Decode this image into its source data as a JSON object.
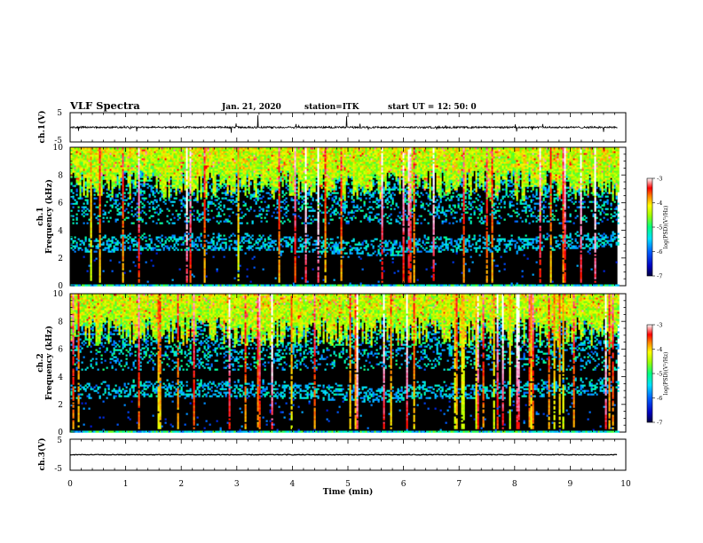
{
  "header": {
    "title": "VLF Spectra",
    "date": "Jan. 21, 2020",
    "station": "station=ITK",
    "start": "start UT =  12: 50: 0"
  },
  "colors": {
    "background": "#000000",
    "waveform": "#000000",
    "colormap": [
      "#00004a",
      "#0000c8",
      "#0060ff",
      "#00d8ff",
      "#00ff90",
      "#7cff00",
      "#f0ff00",
      "#ff9000",
      "#ff0000",
      "#ff7fbf",
      "#ffffff"
    ]
  },
  "chart_data": [
    {
      "type": "line",
      "name": "ch1-waveform",
      "ylabel": "ch.1(V)",
      "yticks": [
        "5",
        "-5"
      ],
      "ylim": [
        -5,
        5
      ],
      "xlim": [
        0,
        10
      ],
      "baseline": 0,
      "noise_amplitude": "small",
      "grid": false
    },
    {
      "type": "heatmap",
      "name": "ch1-spectrogram",
      "ylabel": "ch.1 Frequency (kHz)",
      "ylabel_line1": "ch.1",
      "ylabel_line2": "Frequency (kHz)",
      "yticks": [
        "0",
        "2",
        "4",
        "6",
        "8",
        "10"
      ],
      "ylim": [
        0,
        10
      ],
      "xlim": [
        0,
        10
      ],
      "x_end": 9.85,
      "colorbar": {
        "label": "log(PSD)(V²/Hz)",
        "ticks": [
          "-3",
          "-4",
          "-5",
          "-6",
          "-7"
        ],
        "range": [
          -7,
          -3
        ]
      },
      "features": {
        "low_band_kHz": [
          0,
          2.3
        ],
        "chorus_band_kHz": [
          2.3,
          4.2
        ],
        "upper_band_kHz": [
          7,
          10
        ],
        "background": "black (low power)",
        "impulses": "many vertical broadband spikes (sferics)"
      }
    },
    {
      "type": "heatmap",
      "name": "ch2-spectrogram",
      "ylabel": "ch.2 Frequency (kHz)",
      "ylabel_line1": "ch.2",
      "ylabel_line2": "Frequency (kHz)",
      "yticks": [
        "0",
        "2",
        "4",
        "6",
        "8",
        "10"
      ],
      "ylim": [
        0,
        10
      ],
      "xlim": [
        0,
        10
      ],
      "x_end": 9.85,
      "colorbar": {
        "label": "log(PSD)(V²/Hz)",
        "ticks": [
          "-3",
          "-4",
          "-5",
          "-6",
          "-7"
        ],
        "range": [
          -7,
          -3
        ]
      },
      "features": {
        "low_band_kHz": [
          0,
          2.3
        ],
        "chorus_band_kHz": [
          2.3,
          4.2
        ],
        "upper_band_kHz": [
          7,
          10
        ],
        "background": "black (low power)",
        "impulses": "many vertical broadband spikes (sferics)"
      }
    },
    {
      "type": "line",
      "name": "ch3-waveform",
      "ylabel": "ch.3(V)",
      "yticks": [
        "5",
        "-5"
      ],
      "ylim": [
        -5,
        5
      ],
      "xlim": [
        0,
        10
      ],
      "baseline": 0,
      "noise_amplitude": "tiny",
      "grid": false
    }
  ],
  "xaxis": {
    "label": "Time (min)",
    "ticks": [
      "0",
      "1",
      "2",
      "3",
      "4",
      "5",
      "6",
      "7",
      "8",
      "9",
      "10"
    ],
    "range": [
      0,
      10
    ]
  }
}
